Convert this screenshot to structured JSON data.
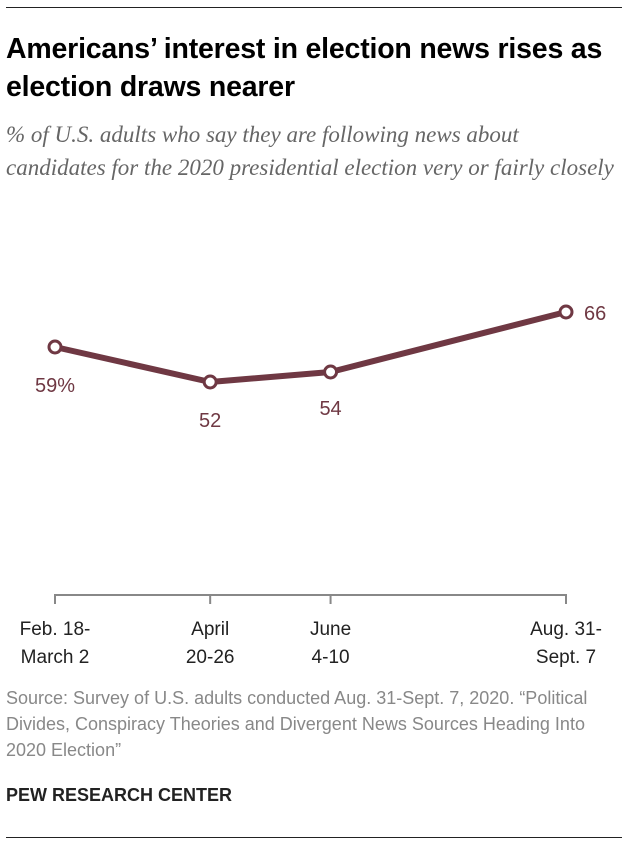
{
  "header": {
    "title": "Americans’ interest in election news rises as election draws nearer",
    "subtitle": "% of U.S. adults who say they are following news about candidates for the 2020 presidential election very or fairly closely"
  },
  "chart_data": {
    "type": "line",
    "categories": [
      "Feb. 18-\nMarch 2",
      "April\n20-26",
      "June\n4-10",
      "Aug. 31-\nSept. 7"
    ],
    "x_dates": [
      "2020-02-25",
      "2020-04-23",
      "2020-06-07",
      "2020-09-03"
    ],
    "values": [
      59,
      52,
      54,
      66
    ],
    "data_labels": [
      "59%",
      "52",
      "54",
      "66"
    ],
    "ylim": [
      0,
      100
    ],
    "line_color": "#6f3843",
    "axis_color": "#888888"
  },
  "footer": {
    "source": "Source: Survey of U.S. adults conducted Aug. 31-Sept. 7, 2020. “Political Divides, Conspiracy Theories and Divergent News Sources Heading Into 2020 Election”",
    "brand": "PEW RESEARCH CENTER"
  }
}
